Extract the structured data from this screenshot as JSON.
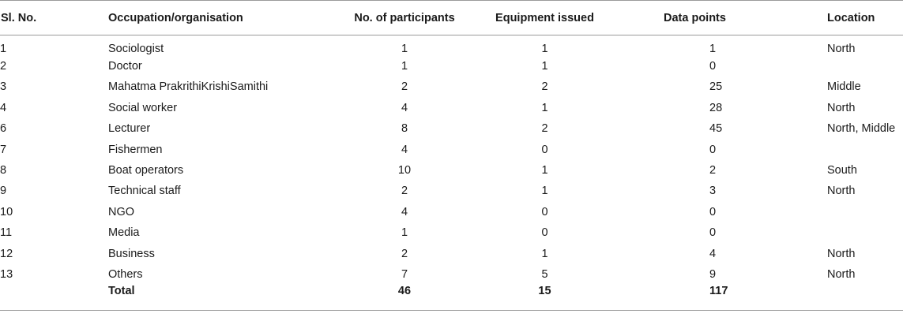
{
  "table": {
    "headers": {
      "sl_no": "Sl. No.",
      "occupation": "Occupation/organisation",
      "participants": "No. of participants",
      "equipment": "Equipment issued",
      "data_points": "Data points",
      "location": "Location"
    },
    "rows": [
      {
        "sl_no": "1",
        "occupation": "Sociologist",
        "participants": "1",
        "equipment": "1",
        "data_points": "1",
        "location": "North"
      },
      {
        "sl_no": "2",
        "occupation": "Doctor",
        "participants": "1",
        "equipment": "1",
        "data_points": "0",
        "location": ""
      },
      {
        "sl_no": "3",
        "occupation": "Mahatma PrakrithiKrishiSamithi",
        "participants": "2",
        "equipment": "2",
        "data_points": "25",
        "location": "Middle"
      },
      {
        "sl_no": "4",
        "occupation": "Social worker",
        "participants": "4",
        "equipment": "1",
        "data_points": "28",
        "location": "North"
      },
      {
        "sl_no": "6",
        "occupation": "Lecturer",
        "participants": "8",
        "equipment": "2",
        "data_points": "45",
        "location": "North, Middle"
      },
      {
        "sl_no": "7",
        "occupation": "Fishermen",
        "participants": "4",
        "equipment": "0",
        "data_points": "0",
        "location": ""
      },
      {
        "sl_no": "8",
        "occupation": "Boat operators",
        "participants": "10",
        "equipment": "1",
        "data_points": "2",
        "location": "South"
      },
      {
        "sl_no": "9",
        "occupation": "Technical staff",
        "participants": "2",
        "equipment": "1",
        "data_points": "3",
        "location": "North"
      },
      {
        "sl_no": "10",
        "occupation": "NGO",
        "participants": "4",
        "equipment": "0",
        "data_points": "0",
        "location": ""
      },
      {
        "sl_no": "11",
        "occupation": "Media",
        "participants": "1",
        "equipment": "0",
        "data_points": "0",
        "location": ""
      },
      {
        "sl_no": "12",
        "occupation": "Business",
        "participants": "2",
        "equipment": "1",
        "data_points": "4",
        "location": "North"
      },
      {
        "sl_no": "13",
        "occupation": "Others",
        "participants": "7",
        "equipment": "5",
        "data_points": "9",
        "location": "North"
      }
    ],
    "total": {
      "label": "Total",
      "participants": "46",
      "equipment": "15",
      "data_points": "117"
    }
  }
}
